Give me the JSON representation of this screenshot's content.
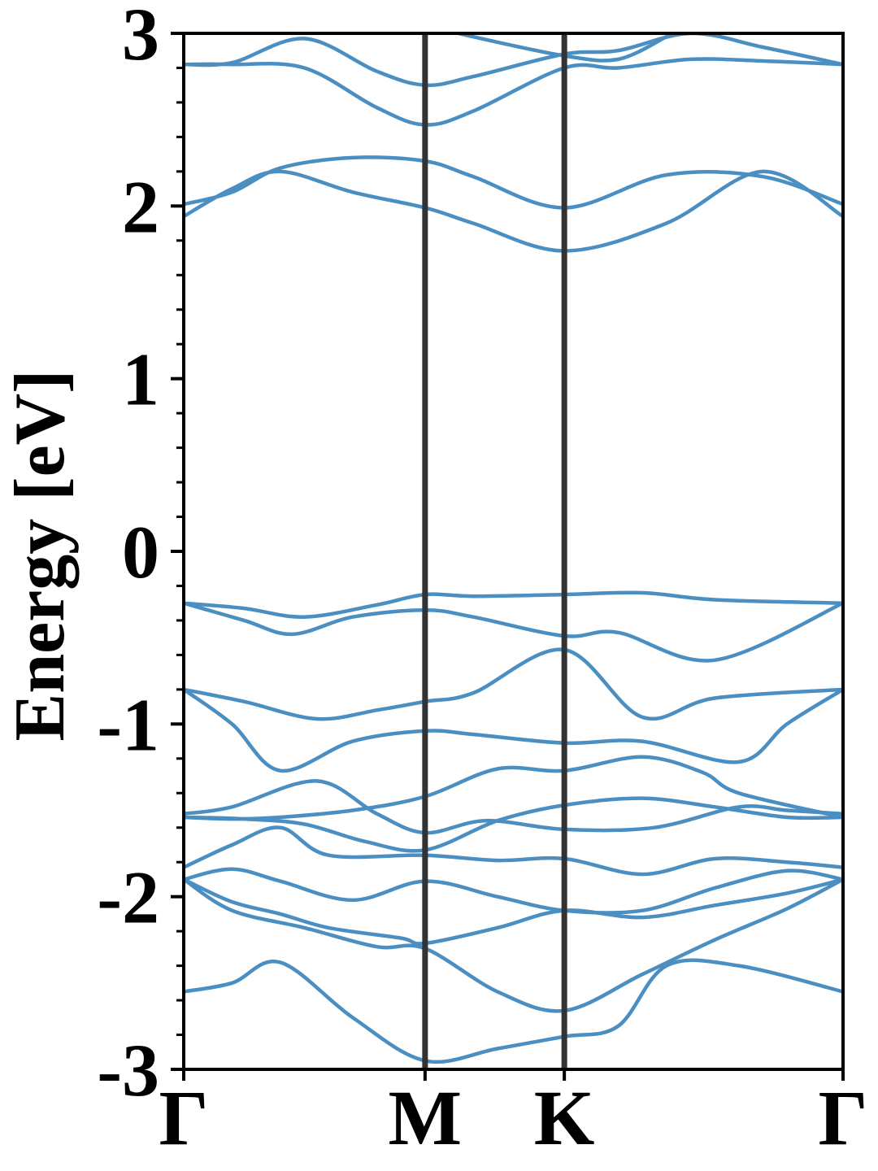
{
  "chart_data": {
    "type": "line",
    "title": "",
    "ylabel": "Energy [eV]",
    "xlabel": "",
    "ylim": [
      -3,
      3
    ],
    "yticks": [
      {
        "value": 3,
        "label": "3"
      },
      {
        "value": 2,
        "label": "2"
      },
      {
        "value": 1,
        "label": "1"
      },
      {
        "value": 0,
        "label": "0"
      },
      {
        "value": -1,
        "label": "-1"
      },
      {
        "value": -2,
        "label": "-2"
      },
      {
        "value": -3,
        "label": "-3"
      }
    ],
    "yminor_step": 0.2,
    "kpath": [
      {
        "label": "Γ",
        "pos": 0.0
      },
      {
        "label": "M",
        "pos": 1.0
      },
      {
        "label": "K",
        "pos": 1.577
      },
      {
        "label": "Γ",
        "pos": 2.732
      }
    ],
    "line_color": "#4a8ec2",
    "vline_color": "#333333",
    "grid": false,
    "legend": "none",
    "series": [
      {
        "x": [
          0,
          0.2,
          0.5,
          0.8,
          1.0,
          1.2,
          1.577,
          1.8,
          2.1,
          2.4,
          2.732
        ],
        "y": [
          2.82,
          2.83,
          2.97,
          2.78,
          2.7,
          2.75,
          2.88,
          2.9,
          3.0,
          2.92,
          2.82
        ]
      },
      {
        "x": [
          0,
          0.2,
          0.5,
          0.8,
          1.0,
          1.2,
          1.577,
          1.8,
          2.1,
          2.4,
          2.732
        ],
        "y": [
          2.82,
          2.82,
          2.8,
          2.57,
          2.47,
          2.55,
          2.8,
          2.8,
          2.85,
          2.84,
          2.82
        ]
      },
      {
        "x": [
          1.0,
          1.2,
          1.577,
          1.8,
          2.0
        ],
        "y": [
          3.05,
          2.98,
          2.87,
          2.85,
          2.98
        ]
      },
      {
        "x": [
          0,
          0.2,
          0.4,
          0.7,
          1.0,
          1.2,
          1.577,
          2.0,
          2.4,
          2.732
        ],
        "y": [
          2.01,
          2.08,
          2.22,
          2.28,
          2.26,
          2.17,
          1.99,
          2.18,
          2.17,
          2.01
        ]
      },
      {
        "x": [
          0,
          0.2,
          0.4,
          0.7,
          1.0,
          1.2,
          1.577,
          2.0,
          2.4,
          2.732
        ],
        "y": [
          1.94,
          2.1,
          2.2,
          2.08,
          1.99,
          1.9,
          1.74,
          1.9,
          2.2,
          1.94
        ]
      },
      {
        "x": [
          0,
          0.25,
          0.5,
          0.8,
          1.0,
          1.2,
          1.577,
          1.9,
          2.2,
          2.732
        ],
        "y": [
          -0.3,
          -0.33,
          -0.38,
          -0.31,
          -0.25,
          -0.26,
          -0.25,
          -0.24,
          -0.28,
          -0.3
        ]
      },
      {
        "x": [
          0,
          0.25,
          0.45,
          0.7,
          1.0,
          1.2,
          1.577,
          1.8,
          2.2,
          2.732
        ],
        "y": [
          -0.3,
          -0.4,
          -0.48,
          -0.38,
          -0.34,
          -0.38,
          -0.49,
          -0.47,
          -0.63,
          -0.3
        ]
      },
      {
        "x": [
          0,
          0.25,
          0.55,
          0.8,
          1.0,
          1.2,
          1.577,
          1.9,
          2.2,
          2.732
        ],
        "y": [
          -0.8,
          -0.87,
          -0.97,
          -0.92,
          -0.87,
          -0.82,
          -0.57,
          -0.96,
          -0.85,
          -0.8
        ]
      },
      {
        "x": [
          0,
          0.2,
          0.4,
          0.7,
          1.0,
          1.2,
          1.577,
          1.9,
          2.3,
          2.5,
          2.732
        ],
        "y": [
          -0.8,
          -1.0,
          -1.27,
          -1.1,
          -1.04,
          -1.06,
          -1.11,
          -1.1,
          -1.22,
          -1.0,
          -0.8
        ]
      },
      {
        "x": [
          0,
          0.2,
          0.55,
          0.8,
          1.0,
          1.25,
          1.577,
          1.95,
          2.3,
          2.5,
          2.732
        ],
        "y": [
          -1.52,
          -1.48,
          -1.33,
          -1.52,
          -1.63,
          -1.56,
          -1.61,
          -1.6,
          -1.48,
          -1.5,
          -1.52
        ]
      },
      {
        "x": [
          0,
          0.2,
          0.4,
          0.7,
          1.0,
          1.3,
          1.577,
          1.9,
          2.15,
          2.3,
          2.732
        ],
        "y": [
          -1.54,
          -1.55,
          -1.54,
          -1.5,
          -1.42,
          -1.26,
          -1.27,
          -1.19,
          -1.28,
          -1.4,
          -1.54
        ]
      },
      {
        "x": [
          0,
          0.25,
          0.5,
          0.75,
          1.0,
          1.3,
          1.577,
          1.9,
          2.2,
          2.5,
          2.732
        ],
        "y": [
          -1.54,
          -1.55,
          -1.58,
          -1.68,
          -1.73,
          -1.56,
          -1.47,
          -1.43,
          -1.48,
          -1.54,
          -1.54
        ]
      },
      {
        "x": [
          0,
          0.2,
          0.4,
          0.6,
          1.0,
          1.3,
          1.577,
          1.9,
          2.2,
          2.5,
          2.732
        ],
        "y": [
          -1.83,
          -1.7,
          -1.6,
          -1.76,
          -1.76,
          -1.79,
          -1.78,
          -1.87,
          -1.78,
          -1.8,
          -1.83
        ]
      },
      {
        "x": [
          0,
          0.2,
          0.4,
          0.7,
          1.0,
          1.3,
          1.577,
          1.9,
          2.2,
          2.5,
          2.732
        ],
        "y": [
          -1.9,
          -1.84,
          -1.91,
          -2.02,
          -1.91,
          -2.0,
          -2.08,
          -2.08,
          -1.95,
          -1.85,
          -1.9
        ]
      },
      {
        "x": [
          0,
          0.2,
          0.4,
          0.6,
          0.9,
          1.0,
          1.3,
          1.577,
          1.9,
          2.2,
          2.5,
          2.732
        ],
        "y": [
          -1.9,
          -2.03,
          -2.1,
          -2.18,
          -2.24,
          -2.27,
          -2.18,
          -2.08,
          -2.12,
          -2.05,
          -1.98,
          -1.9
        ]
      },
      {
        "x": [
          0,
          0.2,
          0.5,
          0.8,
          1.0,
          1.3,
          1.577,
          1.9,
          2.2,
          2.5,
          2.732
        ],
        "y": [
          -1.9,
          -2.08,
          -2.18,
          -2.29,
          -2.3,
          -2.55,
          -2.66,
          -2.45,
          -2.25,
          -2.07,
          -1.9
        ]
      },
      {
        "x": [
          0,
          0.2,
          0.4,
          0.7,
          1.0,
          1.3,
          1.577,
          1.8,
          2.0,
          2.3,
          2.732
        ],
        "y": [
          -2.55,
          -2.5,
          -2.38,
          -2.7,
          -2.95,
          -2.88,
          -2.81,
          -2.75,
          -2.4,
          -2.4,
          -2.55
        ]
      }
    ]
  }
}
